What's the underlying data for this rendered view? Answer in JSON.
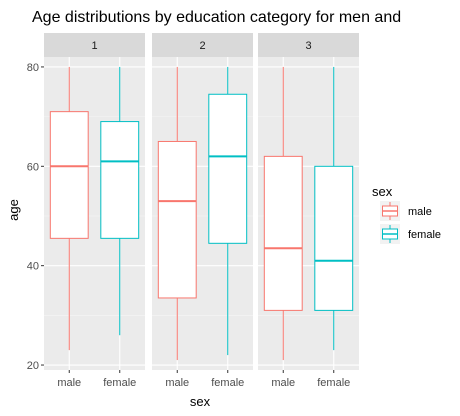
{
  "chart_data": {
    "type": "box",
    "title": "Age distributions by education category for men and",
    "xlabel": "sex",
    "ylabel": "age",
    "ylim": [
      19,
      82
    ],
    "yticks": [
      20,
      40,
      60,
      80
    ],
    "categories": [
      "male",
      "female"
    ],
    "facets": [
      {
        "label": "1",
        "boxes": [
          {
            "group": "male",
            "min": 23,
            "q1": 45.5,
            "median": 60,
            "q3": 71,
            "max": 80
          },
          {
            "group": "female",
            "min": 26,
            "q1": 45.5,
            "median": 61,
            "q3": 69,
            "max": 80
          }
        ]
      },
      {
        "label": "2",
        "boxes": [
          {
            "group": "male",
            "min": 21,
            "q1": 33.5,
            "median": 53,
            "q3": 65,
            "max": 80
          },
          {
            "group": "female",
            "min": 22,
            "q1": 44.5,
            "median": 62,
            "q3": 74.5,
            "max": 80
          }
        ]
      },
      {
        "label": "3",
        "boxes": [
          {
            "group": "male",
            "min": 21,
            "q1": 31,
            "median": 43.5,
            "q3": 62,
            "max": 80
          },
          {
            "group": "female",
            "min": 23,
            "q1": 31,
            "median": 41,
            "q3": 60,
            "max": 80
          }
        ]
      }
    ],
    "legend": {
      "title": "sex",
      "position": "right",
      "entries": [
        "male",
        "female"
      ]
    },
    "colors": {
      "male": "#F8766D",
      "female": "#00BFC4"
    },
    "grid": true
  }
}
